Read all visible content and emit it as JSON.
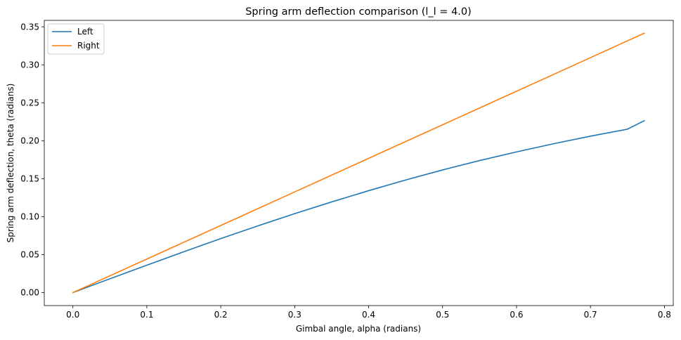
{
  "chart_data": {
    "type": "line",
    "title": "Spring arm deflection comparison (l_l = 4.0)",
    "xlabel": "Gimbal angle, alpha (radians)",
    "ylabel": "Spring arm deflection, theta (radians)",
    "xlim": [
      -0.0387,
      0.812
    ],
    "ylim": [
      -0.0171,
      0.3585
    ],
    "xticks": [
      0.0,
      0.1,
      0.2,
      0.3,
      0.4,
      0.5,
      0.6,
      0.7,
      0.8
    ],
    "xtick_labels": [
      "0.0",
      "0.1",
      "0.2",
      "0.3",
      "0.4",
      "0.5",
      "0.6",
      "0.7",
      "0.8"
    ],
    "yticks": [
      0.0,
      0.05,
      0.1,
      0.15,
      0.2,
      0.25,
      0.3,
      0.35
    ],
    "ytick_labels": [
      "0.00",
      "0.05",
      "0.10",
      "0.15",
      "0.20",
      "0.25",
      "0.30",
      "0.35"
    ],
    "grid": false,
    "legend_position": "top-left",
    "series": [
      {
        "name": "Left",
        "color": "#1f77b4",
        "x": [
          0.0,
          0.05,
          0.1,
          0.15,
          0.2,
          0.25,
          0.3,
          0.35,
          0.4,
          0.45,
          0.5,
          0.55,
          0.6,
          0.65,
          0.7,
          0.75,
          0.773
        ],
        "y": [
          0.0,
          0.0182,
          0.0361,
          0.0538,
          0.0711,
          0.0878,
          0.104,
          0.1194,
          0.1342,
          0.1483,
          0.1615,
          0.1739,
          0.1853,
          0.196,
          0.206,
          0.2152,
          0.2265
        ]
      },
      {
        "name": "Right",
        "color": "#ff7f0e",
        "x": [
          0.0,
          0.1,
          0.2,
          0.3,
          0.4,
          0.5,
          0.6,
          0.7,
          0.773
        ],
        "y": [
          0.0,
          0.0442,
          0.0884,
          0.1326,
          0.1768,
          0.221,
          0.2652,
          0.3094,
          0.3417
        ]
      }
    ]
  }
}
